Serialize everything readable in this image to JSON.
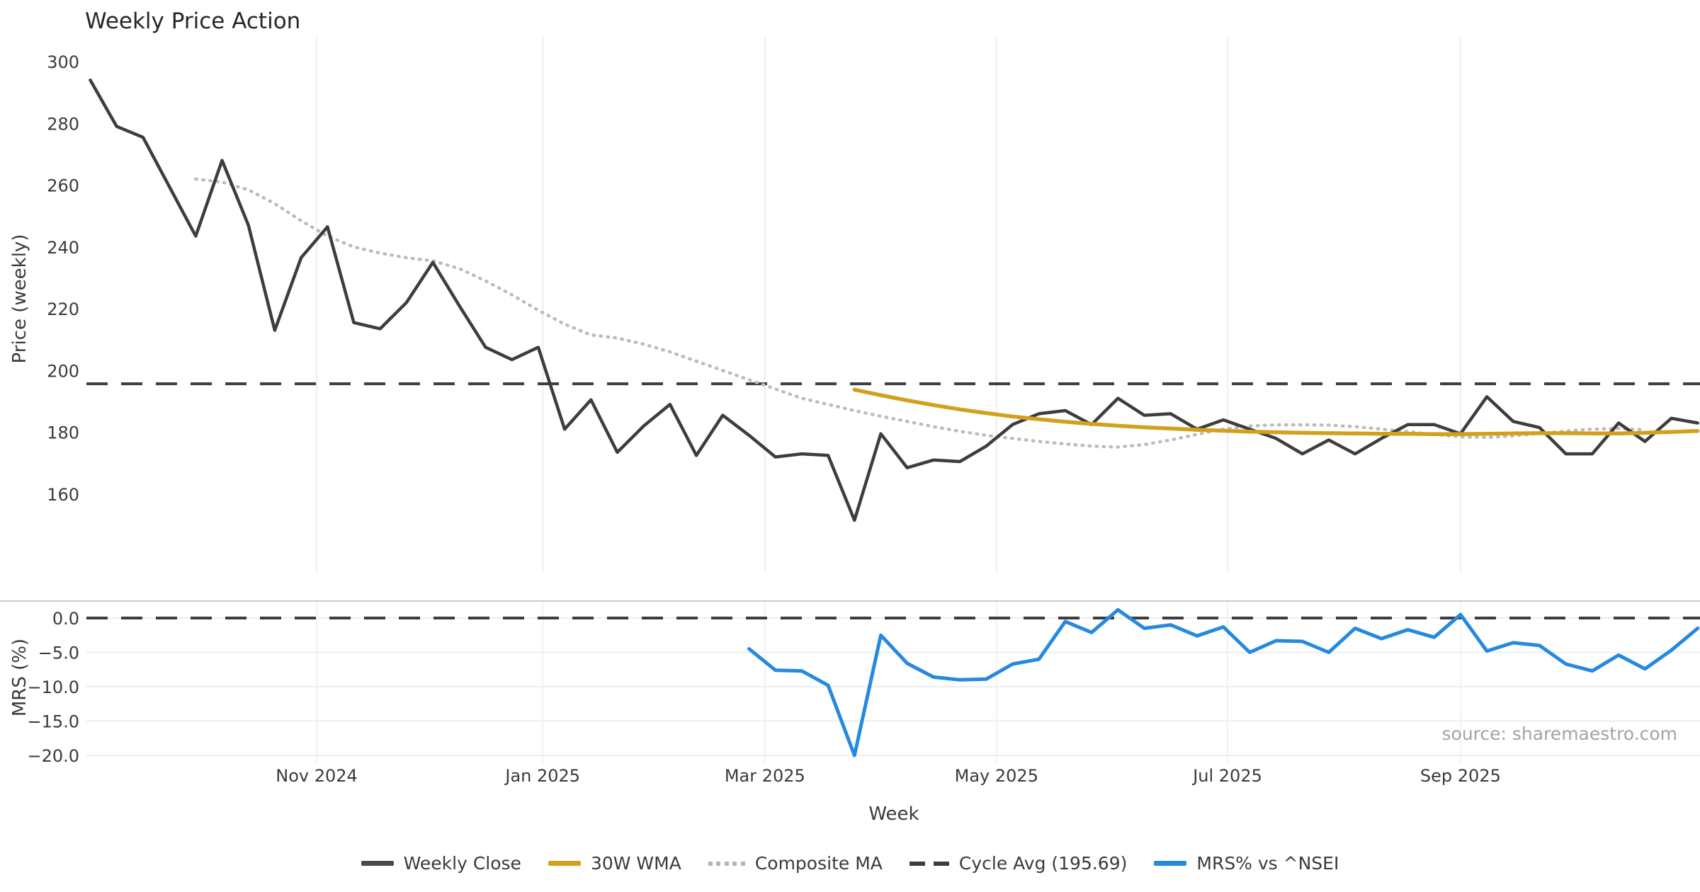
{
  "title": "Weekly Price Action",
  "source_text": "source: sharemaestro.com",
  "colors": {
    "close": "#3d3d3d",
    "wma": "#d2a11c",
    "composite": "#bcbcbc",
    "cycle": "#3d3d3d",
    "mrs": "#2589e0",
    "grid": "#ededf3",
    "spine": "#c9c9c9",
    "tick_text": "#3a3a3a"
  },
  "legend": {
    "items": [
      {
        "label": "Weekly Close",
        "style": "solid",
        "color": "#4a4a4a"
      },
      {
        "label": "30W WMA",
        "style": "solid",
        "color": "#d2a11c"
      },
      {
        "label": "Composite MA",
        "style": "dotted",
        "color": "#b5b5b5"
      },
      {
        "label": "Cycle Avg (195.69)",
        "style": "dashed",
        "color": "#3d3d3d"
      },
      {
        "label": "MRS% vs ^NSEI",
        "style": "solid",
        "color": "#2589e0"
      }
    ]
  },
  "chart_data": [
    {
      "type": "line",
      "panel": "price",
      "title": "Weekly Price Action",
      "xlabel": "Week",
      "ylabel": "Price (weekly)",
      "yticks": [
        300,
        280,
        260,
        240,
        220,
        200,
        180,
        160
      ],
      "ylim": [
        141,
        302
      ],
      "x_unit": "week_index",
      "month_ticks": [
        {
          "label": "Nov 2024",
          "week": 8.59
        },
        {
          "label": "Jan 2025",
          "week": 17.17
        },
        {
          "label": "Mar 2025",
          "week": 25.6
        },
        {
          "label": "May 2025",
          "week": 34.39
        },
        {
          "label": "Jul 2025",
          "week": 43.16
        },
        {
          "label": "Sep 2025",
          "week": 52.0
        }
      ],
      "grid": "vertical-only",
      "legend_position": "bottom-center",
      "series": [
        {
          "name": "Weekly Close",
          "start_week": 0,
          "values": [
            294,
            279,
            275.5,
            259.5,
            243.5,
            268,
            247,
            213,
            236.5,
            246.5,
            215.5,
            213.5,
            222,
            235,
            221,
            207.5,
            203.5,
            207.5,
            181,
            190.5,
            173.5,
            182,
            189,
            172.5,
            185.5,
            179,
            172,
            173,
            172.5,
            151.5,
            179.5,
            168.5,
            171,
            170.5,
            175.5,
            182.5,
            186,
            187,
            182.5,
            191,
            185.5,
            186,
            181,
            184,
            181,
            178,
            173,
            177.5,
            173,
            178,
            182.5,
            182.5,
            179.5,
            191.5,
            183.5,
            181.5,
            173,
            173,
            183,
            177,
            184.5,
            183
          ]
        },
        {
          "name": "30W WMA",
          "start_week": 29,
          "values": [
            193.8,
            192.0,
            190.3,
            188.8,
            187.4,
            186.2,
            185.1,
            184.2,
            183.4,
            182.7,
            182.1,
            181.6,
            181.2,
            180.8,
            180.5,
            180.2,
            180.0,
            179.8,
            179.7,
            179.6,
            179.5,
            179.5,
            179.4,
            179.4,
            179.5,
            179.6,
            179.7,
            179.7,
            179.6,
            179.6,
            179.8,
            180.1,
            180.4
          ]
        },
        {
          "name": "Composite MA",
          "start_week": 4,
          "values": [
            262,
            261,
            258.5,
            254,
            248.5,
            243.5,
            240,
            238,
            236.5,
            235.5,
            233,
            229,
            224.5,
            219.5,
            215,
            211.5,
            210.5,
            208.5,
            206,
            203,
            200,
            197,
            194,
            191,
            189,
            187,
            185.2,
            183.5,
            181.8,
            180.3,
            179,
            178,
            177,
            176.2,
            175.5,
            175.2,
            176,
            177.5,
            179.3,
            181,
            182,
            182.4,
            182.4,
            182.3,
            181.8,
            181,
            180.2,
            179.3,
            178.5,
            178.3,
            178.8,
            179.6,
            180.4,
            181,
            181.2,
            180.8
          ]
        },
        {
          "name": "Cycle Avg",
          "constant": 195.69
        }
      ]
    },
    {
      "type": "line",
      "panel": "mrs",
      "xlabel": "Week",
      "ylabel": "MRS (%)",
      "yticks": [
        0.0,
        -5.0,
        -10.0,
        -15.0,
        -20.0
      ],
      "ylim": [
        -21.5,
        2.5
      ],
      "zero_line": 0.0,
      "grid": "horizontal",
      "series": [
        {
          "name": "MRS% vs ^NSEI",
          "start_week": 25,
          "values": [
            -4.5,
            -7.6,
            -7.7,
            -9.8,
            -20.0,
            -2.5,
            -6.6,
            -8.6,
            -9.0,
            -8.9,
            -6.7,
            -6.0,
            -0.5,
            -2.1,
            1.2,
            -1.5,
            -1.0,
            -2.6,
            -1.3,
            -5.0,
            -3.3,
            -3.4,
            -5.0,
            -1.5,
            -3.0,
            -1.7,
            -2.8,
            0.5,
            -4.8,
            -3.6,
            -4.0,
            -6.7,
            -7.7,
            -5.4,
            -7.4,
            -4.7,
            -1.5
          ]
        }
      ]
    }
  ]
}
